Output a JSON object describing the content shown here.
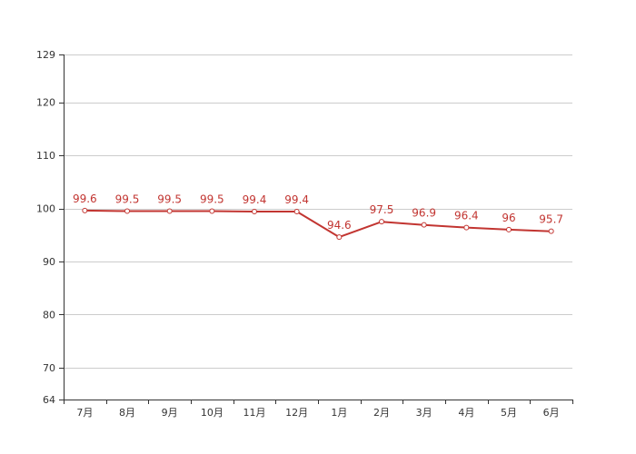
{
  "chart_data": {
    "type": "line",
    "categories": [
      "7月",
      "8月",
      "9月",
      "10月",
      "11月",
      "12月",
      "1月",
      "2月",
      "3月",
      "4月",
      "5月",
      "6月"
    ],
    "series": [
      {
        "values": [
          99.6,
          99.5,
          99.5,
          99.5,
          99.4,
          99.4,
          94.6,
          97.5,
          96.9,
          96.4,
          96,
          95.7
        ],
        "data_labels": [
          "99.6",
          "99.5",
          "99.5",
          "99.5",
          "99.4",
          "99.4",
          "94.6",
          "97.5",
          "96.9",
          "96.4",
          "96",
          "95.7"
        ],
        "color": "#c23531"
      }
    ],
    "yticks": [
      64,
      70,
      80,
      90,
      100,
      110,
      120,
      129
    ],
    "ylim": [
      64,
      129
    ],
    "grid": true,
    "legend": "none"
  }
}
